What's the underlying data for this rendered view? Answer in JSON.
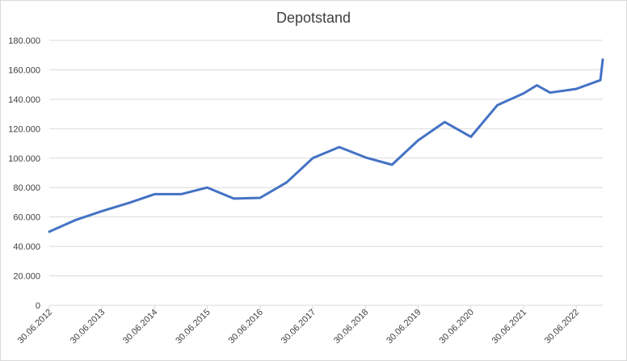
{
  "chart_data": {
    "type": "line",
    "title": "Depotstand",
    "xlabel": "",
    "ylabel": "",
    "ylim": [
      0,
      180000
    ],
    "y_ticks": [
      0,
      20000,
      40000,
      60000,
      80000,
      100000,
      120000,
      140000,
      160000,
      180000
    ],
    "y_tick_labels": [
      "0",
      "20.000",
      "40.000",
      "60.000",
      "80.000",
      "100.000",
      "120.000",
      "140.000",
      "160.000",
      "180.000"
    ],
    "x_range": [
      "2012-06-30",
      "2022-12-31"
    ],
    "x_ticks": [
      "2012-06-30",
      "2013-06-30",
      "2014-06-30",
      "2015-06-30",
      "2016-06-30",
      "2017-06-30",
      "2018-06-30",
      "2019-06-30",
      "2020-06-30",
      "2021-06-30",
      "2022-06-30"
    ],
    "x_tick_labels": [
      "30.06.2012",
      "30.06.2013",
      "30.06.2014",
      "30.06.2015",
      "30.06.2016",
      "30.06.2017",
      "30.06.2018",
      "30.06.2019",
      "30.06.2020",
      "30.06.2021",
      "30.06.2022"
    ],
    "grid": true,
    "line_color": "#4472c4",
    "series": [
      {
        "x": [
          "2012-06-30",
          "2012-12-31",
          "2013-06-30",
          "2013-12-31",
          "2014-06-30",
          "2014-12-31",
          "2015-06-30",
          "2015-12-31",
          "2016-06-30",
          "2016-12-31",
          "2017-06-30",
          "2017-12-31",
          "2018-06-30",
          "2018-12-31",
          "2019-06-30",
          "2019-12-31",
          "2020-06-30",
          "2020-12-31",
          "2021-06-30",
          "2021-09-30",
          "2021-12-31",
          "2022-06-30",
          "2022-12-15",
          "2022-12-31"
        ],
        "y": [
          50000,
          58000,
          64000,
          69500,
          75500,
          75500,
          80000,
          72500,
          73000,
          83500,
          100000,
          107500,
          100500,
          95500,
          112000,
          124500,
          114500,
          136000,
          144000,
          149500,
          144500,
          147000,
          153000,
          167000
        ]
      }
    ]
  }
}
